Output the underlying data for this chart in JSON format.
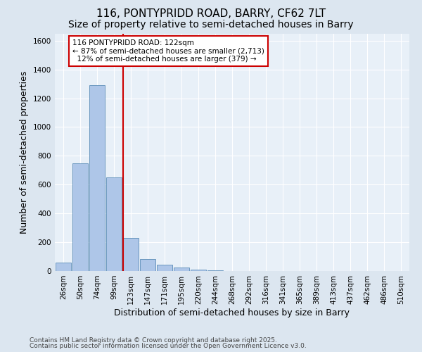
{
  "title1": "116, PONTYPRIDD ROAD, BARRY, CF62 7LT",
  "title2": "Size of property relative to semi-detached houses in Barry",
  "xlabel": "Distribution of semi-detached houses by size in Barry",
  "ylabel": "Number of semi-detached properties",
  "categories": [
    "26sqm",
    "50sqm",
    "74sqm",
    "99sqm",
    "123sqm",
    "147sqm",
    "171sqm",
    "195sqm",
    "220sqm",
    "244sqm",
    "268sqm",
    "292sqm",
    "316sqm",
    "341sqm",
    "365sqm",
    "389sqm",
    "413sqm",
    "437sqm",
    "462sqm",
    "486sqm",
    "510sqm"
  ],
  "values": [
    60,
    750,
    1290,
    650,
    230,
    85,
    45,
    25,
    10,
    5,
    2,
    1,
    0,
    0,
    0,
    0,
    0,
    0,
    0,
    0,
    0
  ],
  "bar_color": "#aec6e8",
  "bar_edge_color": "#5b8db8",
  "vline_color": "#cc0000",
  "annotation_line1": "116 PONTYPRIDD ROAD: 122sqm",
  "annotation_line2": "← 87% of semi-detached houses are smaller (2,713)",
  "annotation_line3": "  12% of semi-detached houses are larger (379) →",
  "annotation_box_color": "#cc0000",
  "ylim": [
    0,
    1650
  ],
  "yticks": [
    0,
    200,
    400,
    600,
    800,
    1000,
    1200,
    1400,
    1600
  ],
  "bg_color": "#dce6f0",
  "plot_bg_color": "#e8f0f8",
  "footer1": "Contains HM Land Registry data © Crown copyright and database right 2025.",
  "footer2": "Contains public sector information licensed under the Open Government Licence v3.0.",
  "title1_fontsize": 11,
  "title2_fontsize": 10,
  "tick_fontsize": 7.5,
  "label_fontsize": 9,
  "footer_fontsize": 6.5
}
